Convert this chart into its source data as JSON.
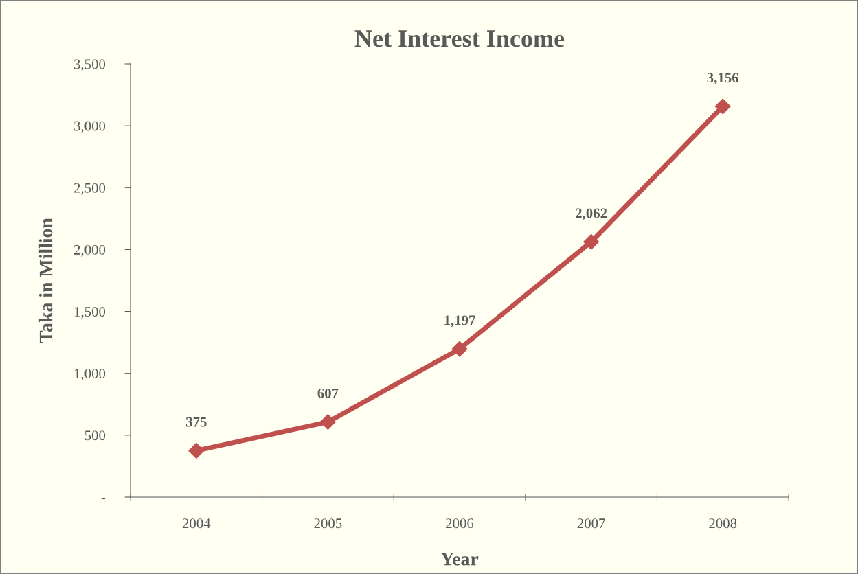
{
  "chart_data": {
    "type": "line",
    "title": "Net Interest Income",
    "xlabel": "Year",
    "ylabel": "Taka in Million",
    "categories": [
      "2004",
      "2005",
      "2006",
      "2007",
      "2008"
    ],
    "series": [
      {
        "color": "#c0504d",
        "values": [
          375,
          607,
          1197,
          2062,
          3156
        ],
        "value_labels": [
          "375",
          "607",
          "1,197",
          "2,062",
          "3,156"
        ]
      }
    ],
    "ylim": [
      0,
      3500
    ],
    "yticks": [
      {
        "value": 0,
        "label": "-"
      },
      {
        "value": 500,
        "label": "500"
      },
      {
        "value": 1000,
        "label": "1,000"
      },
      {
        "value": 1500,
        "label": "1,500"
      },
      {
        "value": 2000,
        "label": "2,000"
      },
      {
        "value": 2500,
        "label": "2,500"
      },
      {
        "value": 3000,
        "label": "3,000"
      },
      {
        "value": 3500,
        "label": "3,500"
      }
    ],
    "grid": false,
    "marker": "diamond",
    "line_style": "solid"
  }
}
